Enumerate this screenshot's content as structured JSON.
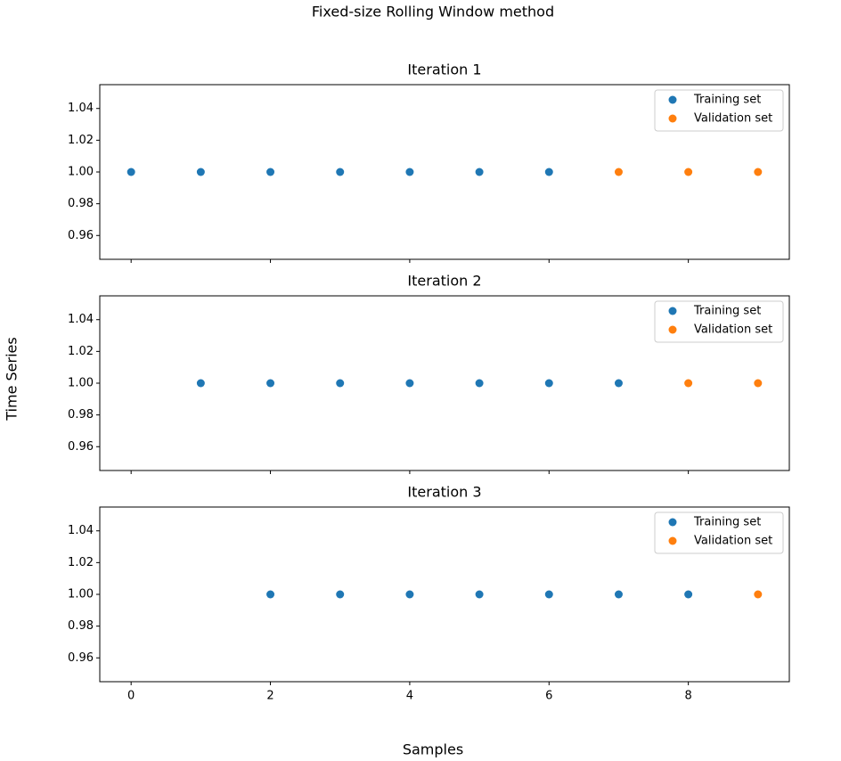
{
  "title": "Fixed-size Rolling Window method",
  "xlabel": "Samples",
  "ylabel": "Time Series",
  "chart_data": [
    {
      "type": "scatter",
      "title": "Iteration 1",
      "legend": "upper right",
      "xlim": [
        -0.45,
        9.45
      ],
      "xticks": [
        0,
        2,
        4,
        6,
        8
      ],
      "ylim": [
        0.945,
        1.055
      ],
      "yticks": [
        0.96,
        0.98,
        {
          "value": 1,
          "label": "1.00"
        },
        1.02,
        1.04
      ],
      "series": [
        {
          "name": "Training set",
          "color": "#1f77b4",
          "x": [
            0,
            1,
            2,
            3,
            4,
            5,
            6
          ],
          "values": [
            1,
            1,
            1,
            1,
            1,
            1,
            1
          ]
        },
        {
          "name": "Validation set",
          "color": "#ff7f0e",
          "x": [
            7,
            8,
            9
          ],
          "values": [
            1,
            1,
            1
          ]
        }
      ]
    },
    {
      "type": "scatter",
      "title": "Iteration 2",
      "legend": "upper right",
      "xlim": [
        -0.45,
        9.45
      ],
      "xticks": [
        0,
        2,
        4,
        6,
        8
      ],
      "ylim": [
        0.945,
        1.055
      ],
      "yticks": [
        0.96,
        0.98,
        {
          "value": 1,
          "label": "1.00"
        },
        1.02,
        1.04
      ],
      "series": [
        {
          "name": "Training set",
          "color": "#1f77b4",
          "x": [
            1,
            2,
            3,
            4,
            5,
            6,
            7
          ],
          "values": [
            1,
            1,
            1,
            1,
            1,
            1,
            1
          ]
        },
        {
          "name": "Validation set",
          "color": "#ff7f0e",
          "x": [
            8,
            9
          ],
          "values": [
            1,
            1
          ]
        }
      ]
    },
    {
      "type": "scatter",
      "title": "Iteration 3",
      "legend": "upper right",
      "show_xtick_labels": true,
      "xlim": [
        -0.45,
        9.45
      ],
      "xticks": [
        0,
        2,
        4,
        6,
        8
      ],
      "ylim": [
        0.945,
        1.055
      ],
      "yticks": [
        0.96,
        0.98,
        {
          "value": 1,
          "label": "1.00"
        },
        1.02,
        1.04
      ],
      "series": [
        {
          "name": "Training set",
          "color": "#1f77b4",
          "x": [
            2,
            3,
            4,
            5,
            6,
            7,
            8
          ],
          "values": [
            1,
            1,
            1,
            1,
            1,
            1,
            1
          ]
        },
        {
          "name": "Validation set",
          "color": "#ff7f0e",
          "x": [
            9
          ],
          "values": [
            1
          ]
        }
      ]
    }
  ]
}
